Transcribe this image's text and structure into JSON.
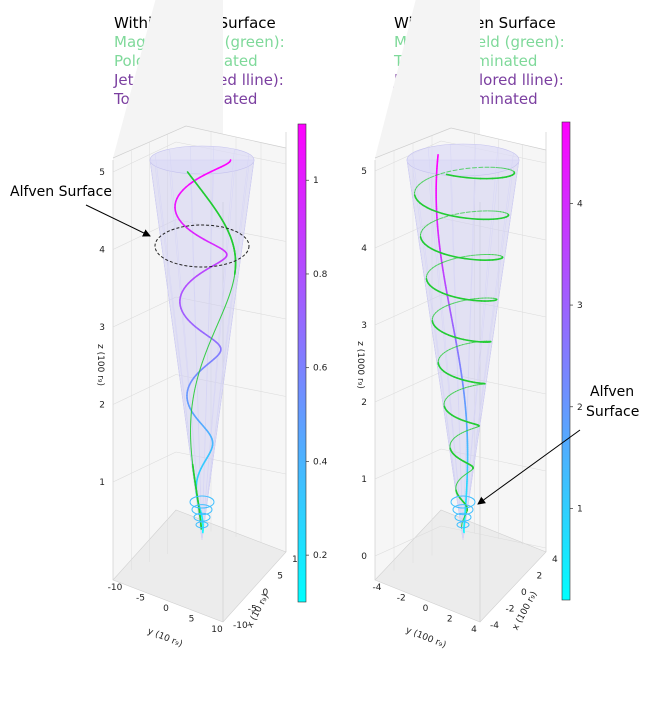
{
  "colors": {
    "title_black": "#000000",
    "magnetic_green": "#7fd99a",
    "jet_purple": "#7b3fa0",
    "field_line": "#22cc33",
    "cone_fill": "#c9c7f0",
    "colormap_start": "#00ffff",
    "colormap_end": "#ff00ff"
  },
  "panels": [
    {
      "title_lines": [
        "Within Alfven Surface",
        "Magnetic field (green):",
        "Poloidal dominated",
        "Jet fluid (colored lline):",
        "Toroidal dominated"
      ],
      "annotation": "Alfven Surface",
      "zlabel": "z (100 r₉)",
      "xlabel": "x (10 r₉)",
      "ylabel": "y (10 r₉)"
    },
    {
      "title_lines": [
        "Within Alfven Surface",
        "Magnetic field (green):",
        "Toroidal dominated",
        "Jet fluid (colored lline):",
        "Poloidal dominated"
      ],
      "annotation_lines": [
        "Alfven",
        "Surface"
      ],
      "zlabel": "z (1000 r₉)",
      "xlabel": "x (100 r₉)",
      "ylabel": "y (100 r₉)"
    }
  ],
  "chart_data": [
    {
      "type": "line3d",
      "zlabel": "z (100 r₉)",
      "z_ticks": [
        1,
        2,
        3,
        4,
        5
      ],
      "x_ticks": [
        10,
        5,
        0,
        -5,
        -10
      ],
      "y_ticks": [
        -10,
        -5,
        0,
        5,
        10
      ],
      "colorbar_ticks": [
        0.2,
        0.4,
        0.6,
        0.8,
        1.0
      ],
      "colorbar_range": [
        0.1,
        1.12
      ],
      "series": [
        {
          "role": "magnetic field line",
          "color": "#22cc33",
          "turns": 1.0
        },
        {
          "role": "jet fluid line",
          "colored_by": "colorbar",
          "turns": 4.0
        }
      ]
    },
    {
      "type": "line3d",
      "zlabel": "z (1000 r₉)",
      "z_ticks": [
        0,
        1,
        2,
        3,
        4,
        5
      ],
      "x_ticks": [
        4,
        2,
        0,
        -2,
        -4
      ],
      "y_ticks": [
        -4,
        -2,
        0,
        2,
        4
      ],
      "colorbar_ticks": [
        1,
        2,
        3,
        4
      ],
      "colorbar_range": [
        0.1,
        4.8
      ],
      "series": [
        {
          "role": "magnetic field line",
          "color": "#22cc33",
          "turns": 9.0
        },
        {
          "role": "jet fluid line",
          "colored_by": "colorbar",
          "turns": 0.6
        }
      ]
    }
  ]
}
